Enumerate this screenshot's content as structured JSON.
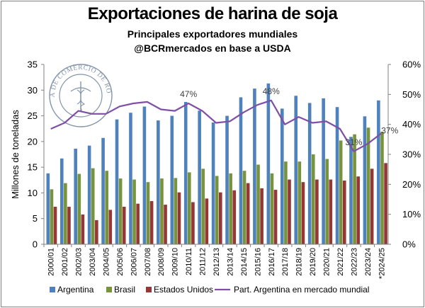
{
  "header": {
    "title": "Exportaciones de harina de soja",
    "subtitle": "Principales exportadores mundiales",
    "source": "@BCRmercados en base a USDA"
  },
  "seal": {
    "text": "BOLSA DE COMERCIO DE ROSARIO"
  },
  "colors": {
    "argentina": "#4f81bd",
    "brasil": "#77933c",
    "estados_unidos": "#953735",
    "participacion": "#7f4fa5"
  },
  "chart_data": {
    "type": "bar",
    "categories": [
      "2000/01",
      "2001/02",
      "2002/03",
      "2003/04",
      "2004/05",
      "2005/06",
      "2006/07",
      "2007/08",
      "2008/09",
      "2009/10",
      "2010/11",
      "2011/12",
      "2012/13",
      "2013/14",
      "2014/15",
      "2015/16",
      "2016/17",
      "2017/18",
      "2018/19",
      "2019/20",
      "2020/21",
      "2021/22",
      "2022/23",
      "2023/24",
      "*2024/25"
    ],
    "ylabel": "Millones de toneladas",
    "ylim": [
      0,
      35
    ],
    "yticks": [
      0,
      5,
      10,
      15,
      20,
      25,
      30,
      35
    ],
    "y2lim": [
      0,
      60
    ],
    "y2ticks": [
      "0%",
      "10%",
      "20%",
      "30%",
      "40%",
      "50%",
      "60%"
    ],
    "grid": false,
    "legend_position": "bottom",
    "series": [
      {
        "name": "Argentina",
        "type": "bar",
        "values": [
          13.8,
          16.7,
          18.6,
          19.2,
          20.7,
          24.3,
          25.6,
          26.8,
          24.1,
          25.0,
          27.7,
          26.0,
          23.7,
          25.0,
          28.6,
          30.3,
          31.3,
          26.4,
          28.9,
          27.5,
          28.4,
          26.7,
          20.9,
          24.9,
          28.0
        ]
      },
      {
        "name": "Brasil",
        "type": "bar",
        "values": [
          10.7,
          11.9,
          13.7,
          14.8,
          14.3,
          12.8,
          12.6,
          12.1,
          12.8,
          12.9,
          14.0,
          14.7,
          13.3,
          13.8,
          14.3,
          15.5,
          13.8,
          16.1,
          16.1,
          17.5,
          16.6,
          20.2,
          21.4,
          22.7,
          21.9
        ]
      },
      {
        "name": "Estados Unidos",
        "type": "bar",
        "values": [
          7.3,
          7.3,
          5.8,
          4.7,
          6.7,
          7.3,
          7.9,
          8.4,
          7.7,
          10.1,
          8.2,
          8.9,
          10.1,
          10.5,
          11.9,
          10.9,
          10.6,
          12.6,
          12.1,
          12.6,
          12.6,
          12.4,
          13.2,
          14.7,
          15.8
        ]
      },
      {
        "name": "Part. Argentina en mercado mundial",
        "type": "line",
        "axis": "secondary",
        "values": [
          38.5,
          40.5,
          44.5,
          43.5,
          43.5,
          46.0,
          47.0,
          47.5,
          45.0,
          44.5,
          47.0,
          44.5,
          40.5,
          41.0,
          44.0,
          46.5,
          48.0,
          40.0,
          42.5,
          40.5,
          41.0,
          38.5,
          31.0,
          33.5,
          37.0
        ]
      }
    ],
    "annotations": [
      {
        "text": "47%",
        "index": 10,
        "value": 47
      },
      {
        "text": "48%",
        "index": 16,
        "value": 48
      },
      {
        "text": "31%",
        "index": 22,
        "value": 31
      },
      {
        "text": "37%",
        "index": 24,
        "value": 37
      }
    ]
  }
}
